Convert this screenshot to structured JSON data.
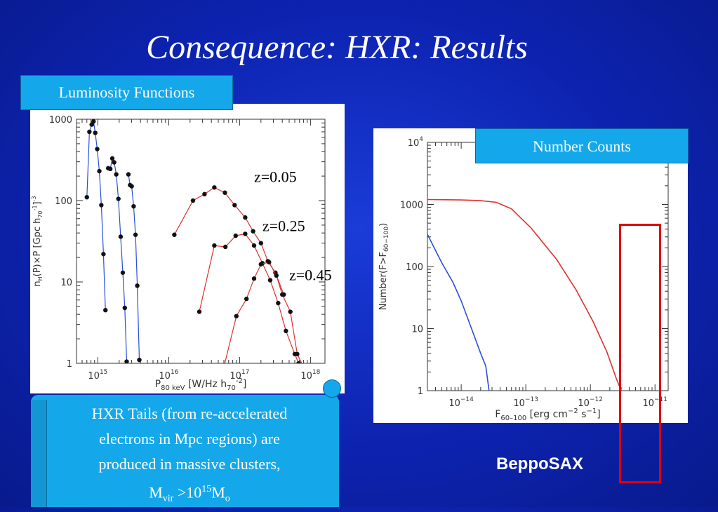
{
  "slide": {
    "title": "Consequence: HXR: Results",
    "lum_label": "Luminosity Functions",
    "counts_label": "Number Counts",
    "note_line1": "HXR Tails (from re-accelerated",
    "note_line2": "electrons in Mpc regions) are",
    "note_line3": "produced in massive clusters,",
    "note_m": "M",
    "note_vir": "vir",
    "note_gt": " >10",
    "note_exp": "15",
    "note_m2": "M",
    "note_o": "o",
    "beppo": "BeppoSAX"
  },
  "colors": {
    "blue": "#2a4fd8",
    "red": "#e03030",
    "label_bg": "#14a8ea",
    "highlight": "#e00000"
  },
  "chart_data": [
    {
      "type": "line",
      "name": "luminosity-functions",
      "xlabel_main": "P",
      "xlabel_sub": "80 keV",
      "xlabel_unit": "[W/Hz h",
      "xlabel_unit_sub": "70",
      "xlabel_unit_sup": "-2",
      "xlabel_close": "]",
      "ylabel": "n_H(P)×P [Gpc h_70^-1]^-3",
      "x_scale": "log",
      "y_scale": "log",
      "xlim": [
        500000000000000.0,
        1.6e+18
      ],
      "ylim": [
        1,
        1000
      ],
      "x_ticks": [
        {
          "v": 1000000000000000.0,
          "b": "10",
          "e": "15"
        },
        {
          "v": 1e+16,
          "b": "10",
          "e": "16"
        },
        {
          "v": 1e+17,
          "b": "10",
          "e": "17"
        },
        {
          "v": 1e+18,
          "b": "10",
          "e": "18"
        }
      ],
      "y_ticks": [
        {
          "v": 1,
          "t": "1"
        },
        {
          "v": 10,
          "t": "10"
        },
        {
          "v": 100,
          "t": "100"
        },
        {
          "v": 1000,
          "t": "1000"
        }
      ],
      "annotations": [
        {
          "text": "z=0.05",
          "x": 1.6e+17,
          "y": 170
        },
        {
          "text": "z=0.25",
          "x": 2.1e+17,
          "y": 42
        },
        {
          "text": "z=0.45",
          "x": 5e+17,
          "y": 10.5
        }
      ],
      "series": [
        {
          "color": "blue",
          "markers": true,
          "points": [
            [
              700000000000000.0,
              110
            ],
            [
              760000000000000.0,
              700
            ],
            [
              820000000000000.0,
              860
            ],
            [
              870000000000000.0,
              940
            ],
            [
              920000000000000.0,
              680
            ],
            [
              980000000000000.0,
              430
            ],
            [
              1050000000000000.0,
              230
            ],
            [
              1120000000000000.0,
              88
            ],
            [
              1200000000000000.0,
              22
            ],
            [
              1280000000000000.0,
              4.5
            ]
          ]
        },
        {
          "color": "blue",
          "markers": true,
          "points": [
            [
              1400000000000000.0,
              250
            ],
            [
              1500000000000000.0,
              245
            ],
            [
              1600000000000000.0,
              330
            ],
            [
              1700000000000000.0,
              295
            ],
            [
              1820000000000000.0,
              210
            ],
            [
              1950000000000000.0,
              105
            ],
            [
              2100000000000000.0,
              36
            ],
            [
              2250000000000000.0,
              13
            ],
            [
              2400000000000000.0,
              4.8
            ],
            [
              2550000000000000.0,
              1.05
            ]
          ]
        },
        {
          "color": "blue",
          "markers": true,
          "points": [
            [
              2700000000000000.0,
              210
            ],
            [
              2850000000000000.0,
              155
            ],
            [
              3000000000000000.0,
              150
            ],
            [
              3200000000000000.0,
              85
            ],
            [
              3400000000000000.0,
              38
            ],
            [
              3600000000000000.0,
              9
            ],
            [
              3850000000000000.0,
              1.1
            ]
          ]
        },
        {
          "color": "red",
          "markers": true,
          "points": [
            [
              1.2e+16,
              38
            ],
            [
              2.2e+16,
              100
            ],
            [
              3.2e+16,
              120
            ],
            [
              4.4e+16,
              145
            ],
            [
              6.2e+16,
              125
            ],
            [
              8.5e+16,
              88
            ],
            [
              1.2e+17,
              62
            ],
            [
              1.55e+17,
              42
            ],
            [
              2e+17,
              30
            ],
            [
              2.5e+17,
              18
            ],
            [
              3.2e+17,
              13
            ],
            [
              4.2e+17,
              7
            ]
          ]
        },
        {
          "color": "red",
          "markers": true,
          "points": [
            [
              2.7e+16,
              4.3
            ],
            [
              4.4e+16,
              28
            ],
            [
              6.3e+16,
              27
            ],
            [
              8.8e+16,
              37
            ],
            [
              1.2e+17,
              39
            ],
            [
              1.6e+17,
              28
            ],
            [
              2.1e+17,
              17
            ],
            [
              2.7e+17,
              10.5
            ],
            [
              3.5e+17,
              5.5
            ],
            [
              4.5e+17,
              2.5
            ],
            [
              6e+17,
              1.3
            ],
            [
              6.8e+17,
              1.0
            ]
          ]
        },
        {
          "color": "red",
          "markers": true,
          "points": [
            [
              6e+16,
              0.9
            ],
            [
              9e+16,
              3.8
            ],
            [
              1.25e+17,
              6.2
            ],
            [
              1.6e+17,
              11
            ],
            [
              2e+17,
              16.5
            ],
            [
              2.6e+17,
              17.5
            ],
            [
              3.3e+17,
              12
            ],
            [
              4e+17,
              7
            ],
            [
              5.2e+17,
              4.3
            ],
            [
              6.5e+17,
              1.3
            ],
            [
              8e+17,
              0.9
            ]
          ]
        }
      ]
    },
    {
      "type": "line",
      "name": "number-counts",
      "xlabel_main": "F",
      "xlabel_sub": "60–100",
      "xlabel_unit": "[erg cm",
      "xlabel_unit_sup": "−2",
      "xlabel_unit2": " s",
      "xlabel_unit2_sup": "−1",
      "xlabel_close": "]",
      "ylabel": "Number(F>F_60-100)",
      "x_scale": "log",
      "y_scale": "log",
      "xlim": [
        3e-15,
        1.6e-11
      ],
      "ylim": [
        1,
        10000
      ],
      "x_ticks": [
        {
          "v": 1e-14,
          "b": "10",
          "e": "−14"
        },
        {
          "v": 1e-13,
          "b": "10",
          "e": "−13"
        },
        {
          "v": 1e-12,
          "b": "10",
          "e": "−12"
        },
        {
          "v": 1e-11,
          "b": "10",
          "e": "−11"
        }
      ],
      "y_ticks": [
        {
          "v": 1,
          "t": "1",
          "exp": ""
        },
        {
          "v": 10,
          "t": "10",
          "exp": ""
        },
        {
          "v": 100,
          "t": "100",
          "exp": ""
        },
        {
          "v": 1000,
          "t": "1000",
          "exp": ""
        },
        {
          "v": 10000,
          "t": "10",
          "exp": "4"
        }
      ],
      "series": [
        {
          "color": "red",
          "markers": false,
          "points": [
            [
              3e-15,
              1200
            ],
            [
              1e-14,
              1180
            ],
            [
              2e-14,
              1150
            ],
            [
              3.5e-14,
              1080
            ],
            [
              6e-14,
              850
            ],
            [
              1.2e-13,
              420
            ],
            [
              3e-13,
              130
            ],
            [
              6e-13,
              42
            ],
            [
              1.1e-12,
              13
            ],
            [
              1.8e-12,
              4.2
            ],
            [
              2.5e-12,
              1.6
            ],
            [
              3e-12,
              1.0
            ]
          ]
        },
        {
          "color": "blue",
          "markers": false,
          "points": [
            [
              3e-15,
              330
            ],
            [
              5e-15,
              115
            ],
            [
              7.5e-15,
              55
            ],
            [
              1e-14,
              28
            ],
            [
              1.5e-14,
              9
            ],
            [
              2e-14,
              4
            ],
            [
              2.4e-14,
              2.5
            ],
            [
              2.7e-14,
              1.0
            ]
          ]
        }
      ]
    }
  ]
}
